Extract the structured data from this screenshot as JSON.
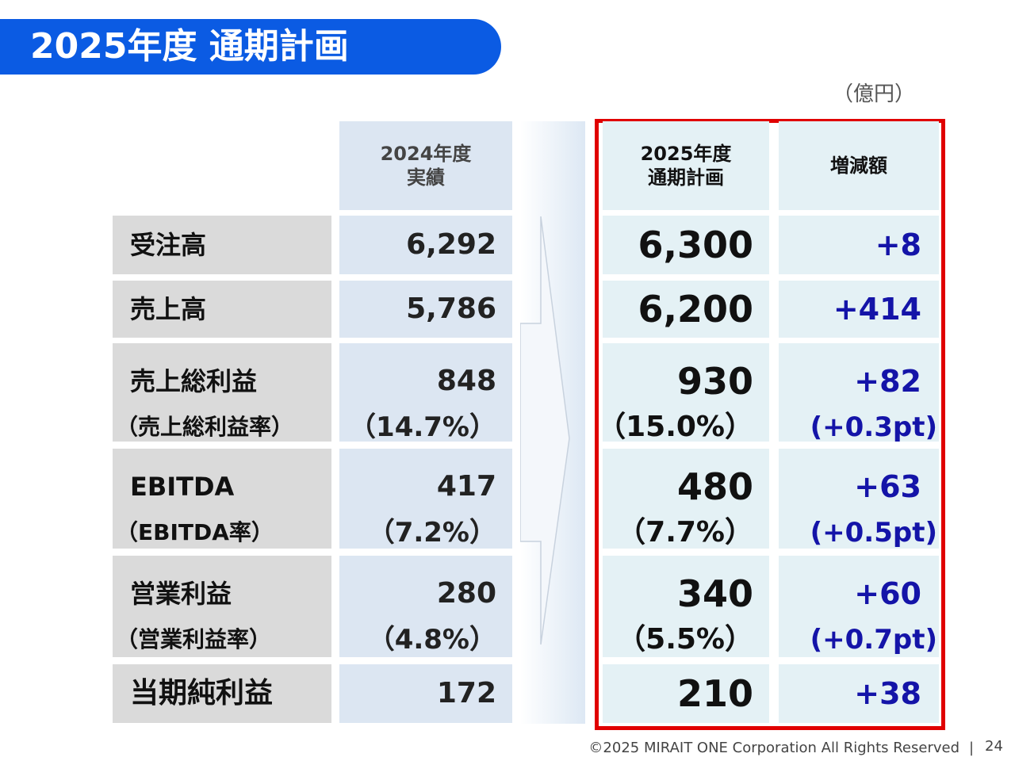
{
  "header": {
    "title": "2025年度 通期計画"
  },
  "unit": "（億円）",
  "table": {
    "columns": [
      [
        "2024年度",
        "実績"
      ],
      [
        "2025年度",
        "通期計画"
      ],
      [
        "増減額"
      ]
    ],
    "rows": [
      {
        "label": "受注高",
        "values": [
          "6,292",
          "6,300",
          "+8"
        ]
      },
      {
        "label": "売上高",
        "values": [
          "5,786",
          "6,200",
          "+414"
        ]
      },
      {
        "label": "売上総利益",
        "values": [
          "848",
          "930",
          "+82"
        ],
        "sub_label": "（売上総利益率）",
        "sub_values": [
          "（14.7%）",
          "（15.0%）",
          "(+0.3pt)"
        ]
      },
      {
        "label": "EBITDA",
        "values": [
          "417",
          "480",
          "+63"
        ],
        "sub_label": "（EBITDA率）",
        "sub_values": [
          "（7.2%）",
          "（7.7%）",
          "(+0.5pt)"
        ]
      },
      {
        "label": "営業利益",
        "values": [
          "280",
          "340",
          "+60"
        ],
        "sub_label": "（営業利益率）",
        "sub_values": [
          "（4.8%）",
          "（5.5%）",
          "(+0.7pt)"
        ]
      },
      {
        "label": "当期純利益",
        "values": [
          "172",
          "210",
          "+38"
        ]
      }
    ]
  },
  "footer": {
    "copyright": "©2025 MIRAIT ONE Corporation All Rights Reserved",
    "separator": "|",
    "page": "24"
  }
}
